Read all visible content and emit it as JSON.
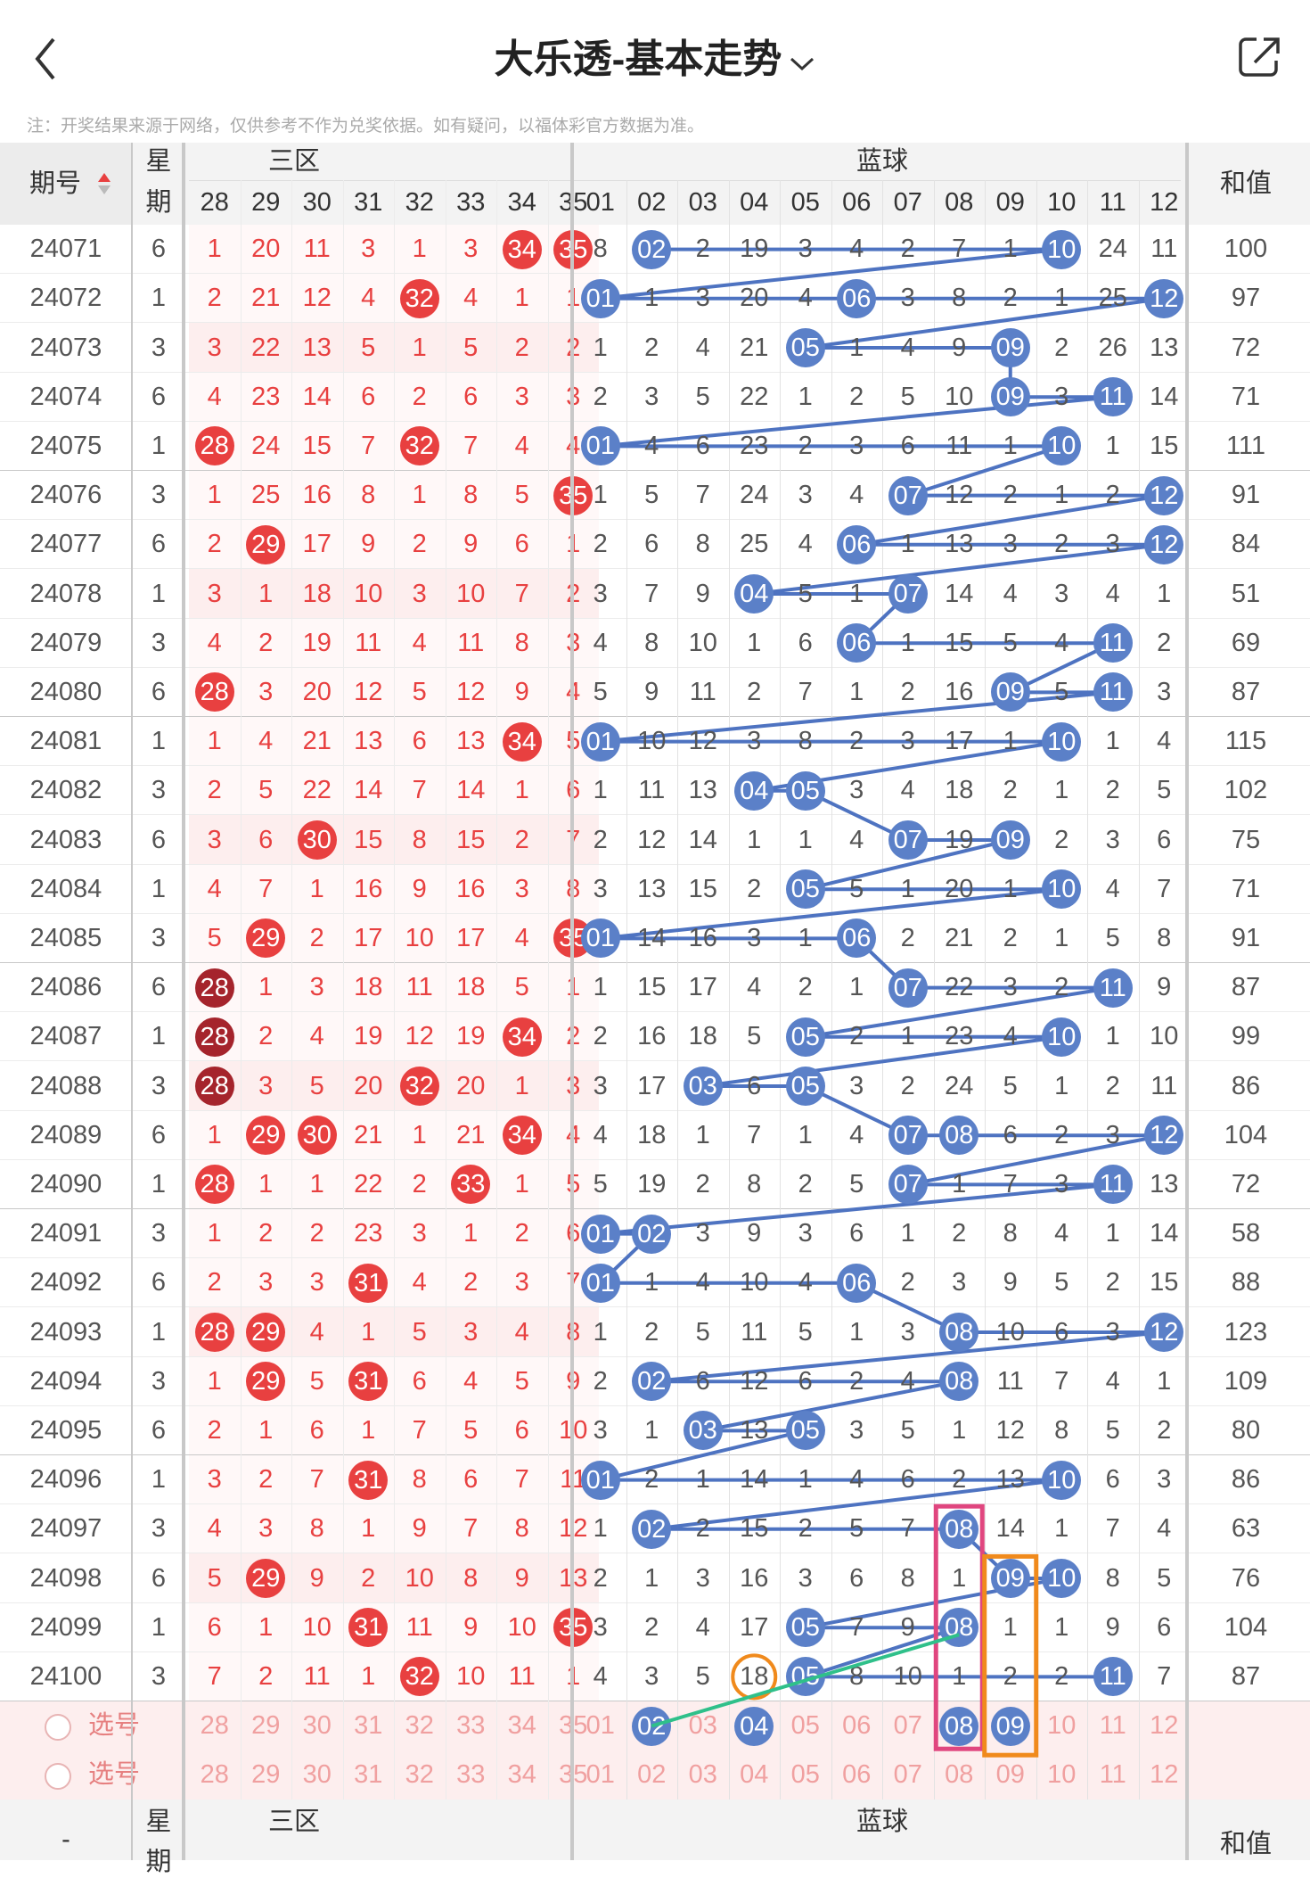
{
  "header": {
    "title": "大乐透-基本走势",
    "note": "注：开奖结果来源于网络，仅供参考不作为兑奖依据。如有疑问，以福体彩官方数据为准。"
  },
  "table": {
    "period_label": "期号",
    "sort_icon": "sort-arrows-icon",
    "week_label_1": "星",
    "week_label_2": "期",
    "red_zone_label": "三区",
    "blue_zone_label": "蓝球",
    "sum_label": "和值",
    "red_columns": [
      "28",
      "29",
      "30",
      "31",
      "32",
      "33",
      "34",
      "35"
    ],
    "blue_columns": [
      "01",
      "02",
      "03",
      "04",
      "05",
      "06",
      "07",
      "08",
      "09",
      "10",
      "11",
      "12"
    ],
    "rows": [
      {
        "period": "24071",
        "week": "6",
        "red": [
          "1",
          "20",
          "11",
          "3",
          "1",
          "3",
          "34",
          "35"
        ],
        "blue": [
          "8",
          "02",
          "2",
          "19",
          "3",
          "4",
          "2",
          "7",
          "1",
          "10",
          "24",
          "11"
        ],
        "sum": "100"
      },
      {
        "period": "24072",
        "week": "1",
        "red": [
          "2",
          "21",
          "12",
          "4",
          "32",
          "4",
          "1",
          "1"
        ],
        "blue": [
          "01",
          "1",
          "3",
          "20",
          "4",
          "06",
          "3",
          "8",
          "2",
          "1",
          "25",
          "12"
        ],
        "sum": "97"
      },
      {
        "period": "24073",
        "week": "3",
        "red": [
          "3",
          "22",
          "13",
          "5",
          "1",
          "5",
          "2",
          "2"
        ],
        "blue": [
          "1",
          "2",
          "4",
          "21",
          "05",
          "1",
          "4",
          "9",
          "09",
          "2",
          "26",
          "13"
        ],
        "sum": "72"
      },
      {
        "period": "24074",
        "week": "6",
        "red": [
          "4",
          "23",
          "14",
          "6",
          "2",
          "6",
          "3",
          "3"
        ],
        "blue": [
          "2",
          "3",
          "5",
          "22",
          "1",
          "2",
          "5",
          "10",
          "09",
          "3",
          "11",
          "14"
        ],
        "sum": "71"
      },
      {
        "period": "24075",
        "week": "1",
        "red": [
          "28",
          "24",
          "15",
          "7",
          "32",
          "7",
          "4",
          "4"
        ],
        "blue": [
          "01",
          "4",
          "6",
          "23",
          "2",
          "3",
          "6",
          "11",
          "1",
          "10",
          "1",
          "15"
        ],
        "sum": "111"
      },
      {
        "period": "24076",
        "week": "3",
        "red": [
          "1",
          "25",
          "16",
          "8",
          "1",
          "8",
          "5",
          "35"
        ],
        "blue": [
          "1",
          "5",
          "7",
          "24",
          "3",
          "4",
          "07",
          "12",
          "2",
          "1",
          "2",
          "12"
        ],
        "sum": "91"
      },
      {
        "period": "24077",
        "week": "6",
        "red": [
          "2",
          "29",
          "17",
          "9",
          "2",
          "9",
          "6",
          "1"
        ],
        "blue": [
          "2",
          "6",
          "8",
          "25",
          "4",
          "06",
          "1",
          "13",
          "3",
          "2",
          "3",
          "12"
        ],
        "sum": "84"
      },
      {
        "period": "24078",
        "week": "1",
        "red": [
          "3",
          "1",
          "18",
          "10",
          "3",
          "10",
          "7",
          "2"
        ],
        "blue": [
          "3",
          "7",
          "9",
          "04",
          "5",
          "1",
          "07",
          "14",
          "4",
          "3",
          "4",
          "1"
        ],
        "sum": "51"
      },
      {
        "period": "24079",
        "week": "3",
        "red": [
          "4",
          "2",
          "19",
          "11",
          "4",
          "11",
          "8",
          "3"
        ],
        "blue": [
          "4",
          "8",
          "10",
          "1",
          "6",
          "06",
          "1",
          "15",
          "5",
          "4",
          "11",
          "2"
        ],
        "sum": "69"
      },
      {
        "period": "24080",
        "week": "6",
        "red": [
          "28",
          "3",
          "20",
          "12",
          "5",
          "12",
          "9",
          "4"
        ],
        "blue": [
          "5",
          "9",
          "11",
          "2",
          "7",
          "1",
          "2",
          "16",
          "09",
          "5",
          "11",
          "3"
        ],
        "sum": "87"
      },
      {
        "period": "24081",
        "week": "1",
        "red": [
          "1",
          "4",
          "21",
          "13",
          "6",
          "13",
          "34",
          "5"
        ],
        "blue": [
          "01",
          "10",
          "12",
          "3",
          "8",
          "2",
          "3",
          "17",
          "1",
          "10",
          "1",
          "4"
        ],
        "sum": "115"
      },
      {
        "period": "24082",
        "week": "3",
        "red": [
          "2",
          "5",
          "22",
          "14",
          "7",
          "14",
          "1",
          "6"
        ],
        "blue": [
          "1",
          "11",
          "13",
          "04",
          "05",
          "3",
          "4",
          "18",
          "2",
          "1",
          "2",
          "5"
        ],
        "sum": "102"
      },
      {
        "period": "24083",
        "week": "6",
        "red": [
          "3",
          "6",
          "30",
          "15",
          "8",
          "15",
          "2",
          "7"
        ],
        "blue": [
          "2",
          "12",
          "14",
          "1",
          "1",
          "4",
          "07",
          "19",
          "09",
          "2",
          "3",
          "6"
        ],
        "sum": "75"
      },
      {
        "period": "24084",
        "week": "1",
        "red": [
          "4",
          "7",
          "1",
          "16",
          "9",
          "16",
          "3",
          "8"
        ],
        "blue": [
          "3",
          "13",
          "15",
          "2",
          "05",
          "5",
          "1",
          "20",
          "1",
          "10",
          "4",
          "7"
        ],
        "sum": "71"
      },
      {
        "period": "24085",
        "week": "3",
        "red": [
          "5",
          "29",
          "2",
          "17",
          "10",
          "17",
          "4",
          "35"
        ],
        "blue": [
          "01",
          "14",
          "16",
          "3",
          "1",
          "06",
          "2",
          "21",
          "2",
          "1",
          "5",
          "8"
        ],
        "sum": "91"
      },
      {
        "period": "24086",
        "week": "6",
        "red": [
          "28",
          "1",
          "3",
          "18",
          "11",
          "18",
          "5",
          "1"
        ],
        "blue": [
          "1",
          "15",
          "17",
          "4",
          "2",
          "1",
          "07",
          "22",
          "3",
          "2",
          "11",
          "9"
        ],
        "sum": "87"
      },
      {
        "period": "24087",
        "week": "1",
        "red": [
          "28",
          "2",
          "4",
          "19",
          "12",
          "19",
          "34",
          "2"
        ],
        "blue": [
          "2",
          "16",
          "18",
          "5",
          "05",
          "2",
          "1",
          "23",
          "4",
          "10",
          "1",
          "10"
        ],
        "sum": "99"
      },
      {
        "period": "24088",
        "week": "3",
        "red": [
          "28",
          "3",
          "5",
          "20",
          "32",
          "20",
          "1",
          "3"
        ],
        "blue": [
          "3",
          "17",
          "03",
          "6",
          "05",
          "3",
          "2",
          "24",
          "5",
          "1",
          "2",
          "11"
        ],
        "sum": "86"
      },
      {
        "period": "24089",
        "week": "6",
        "red": [
          "1",
          "29",
          "30",
          "21",
          "1",
          "21",
          "34",
          "4"
        ],
        "blue": [
          "4",
          "18",
          "1",
          "7",
          "1",
          "4",
          "07",
          "08",
          "6",
          "2",
          "3",
          "12"
        ],
        "sum": "104"
      },
      {
        "period": "24090",
        "week": "1",
        "red": [
          "28",
          "1",
          "1",
          "22",
          "2",
          "33",
          "1",
          "5"
        ],
        "blue": [
          "5",
          "19",
          "2",
          "8",
          "2",
          "5",
          "07",
          "1",
          "7",
          "3",
          "11",
          "13"
        ],
        "sum": "72"
      },
      {
        "period": "24091",
        "week": "3",
        "red": [
          "1",
          "2",
          "2",
          "23",
          "3",
          "1",
          "2",
          "6"
        ],
        "blue": [
          "01",
          "02",
          "3",
          "9",
          "3",
          "6",
          "1",
          "2",
          "8",
          "4",
          "1",
          "14"
        ],
        "sum": "58"
      },
      {
        "period": "24092",
        "week": "6",
        "red": [
          "2",
          "3",
          "3",
          "31",
          "4",
          "2",
          "3",
          "7"
        ],
        "blue": [
          "01",
          "1",
          "4",
          "10",
          "4",
          "06",
          "2",
          "3",
          "9",
          "5",
          "2",
          "15"
        ],
        "sum": "88"
      },
      {
        "period": "24093",
        "week": "1",
        "red": [
          "28",
          "29",
          "4",
          "1",
          "5",
          "3",
          "4",
          "8"
        ],
        "blue": [
          "1",
          "2",
          "5",
          "11",
          "5",
          "1",
          "3",
          "08",
          "10",
          "6",
          "3",
          "12"
        ],
        "sum": "123"
      },
      {
        "period": "24094",
        "week": "3",
        "red": [
          "1",
          "29",
          "5",
          "31",
          "6",
          "4",
          "5",
          "9"
        ],
        "blue": [
          "2",
          "02",
          "6",
          "12",
          "6",
          "2",
          "4",
          "08",
          "11",
          "7",
          "4",
          "1"
        ],
        "sum": "109"
      },
      {
        "period": "24095",
        "week": "6",
        "red": [
          "2",
          "1",
          "6",
          "1",
          "7",
          "5",
          "6",
          "10"
        ],
        "blue": [
          "3",
          "1",
          "03",
          "13",
          "05",
          "3",
          "5",
          "1",
          "12",
          "8",
          "5",
          "2"
        ],
        "sum": "80"
      },
      {
        "period": "24096",
        "week": "1",
        "red": [
          "3",
          "2",
          "7",
          "31",
          "8",
          "6",
          "7",
          "11"
        ],
        "blue": [
          "01",
          "2",
          "1",
          "14",
          "1",
          "4",
          "6",
          "2",
          "13",
          "10",
          "6",
          "3"
        ],
        "sum": "86"
      },
      {
        "period": "24097",
        "week": "3",
        "red": [
          "4",
          "3",
          "8",
          "1",
          "9",
          "7",
          "8",
          "12"
        ],
        "blue": [
          "1",
          "02",
          "2",
          "15",
          "2",
          "5",
          "7",
          "08",
          "14",
          "1",
          "7",
          "4"
        ],
        "sum": "63"
      },
      {
        "period": "24098",
        "week": "6",
        "red": [
          "5",
          "29",
          "9",
          "2",
          "10",
          "8",
          "9",
          "13"
        ],
        "blue": [
          "2",
          "1",
          "3",
          "16",
          "3",
          "6",
          "8",
          "1",
          "09",
          "10",
          "8",
          "5"
        ],
        "sum": "76"
      },
      {
        "period": "24099",
        "week": "1",
        "red": [
          "6",
          "1",
          "10",
          "31",
          "11",
          "9",
          "10",
          "35"
        ],
        "blue": [
          "3",
          "2",
          "4",
          "17",
          "05",
          "7",
          "9",
          "08",
          "1",
          "1",
          "9",
          "6"
        ],
        "sum": "104"
      },
      {
        "period": "24100",
        "week": "3",
        "red": [
          "7",
          "2",
          "11",
          "1",
          "32",
          "10",
          "11",
          "1"
        ],
        "blue": [
          "4",
          "3",
          "5",
          "18",
          "05",
          "8",
          "10",
          "1",
          "2",
          "2",
          "11",
          "7"
        ],
        "sum": "87"
      }
    ],
    "select_rows": [
      {
        "label": "选号",
        "red": [
          "28",
          "29",
          "30",
          "31",
          "32",
          "33",
          "34",
          "35"
        ],
        "blue": [
          "01",
          "02",
          "03",
          "04",
          "05",
          "06",
          "07",
          "08",
          "09",
          "10",
          "11",
          "12"
        ]
      },
      {
        "label": "选号",
        "red": [
          "28",
          "29",
          "30",
          "31",
          "32",
          "33",
          "34",
          "35"
        ],
        "blue": [
          "01",
          "02",
          "03",
          "04",
          "05",
          "06",
          "07",
          "08",
          "09",
          "10",
          "11",
          "12"
        ]
      }
    ],
    "footer": {
      "period": "-",
      "week_1": "星",
      "week_2": "期",
      "red_zone": "三区",
      "blue_zone": "蓝球",
      "sum": "和值"
    }
  },
  "colors": {
    "red": "#e84040",
    "dark_red": "#a5242c",
    "blue": "#5b80c8",
    "line": "#4e73c1",
    "pink": "#e0467f",
    "orange": "#f08a1c",
    "green": "#2fc08a"
  }
}
